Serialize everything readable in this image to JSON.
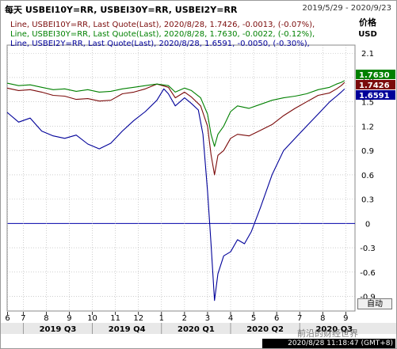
{
  "header": {
    "title": "每天 USBEI10Y=RR, USBEI30Y=RR, USBEI2Y=RR",
    "date_range": "2019/5/29 - 2020/9/23"
  },
  "y_axis_title": "价格",
  "y_axis_unit": "USD",
  "auto_label": "自动",
  "watermark": "前沿的财经世界",
  "timestamp": "2020/8/28 11:18:47 (GMT+8)",
  "colors": {
    "USBEI10Y": "#7b0b0b",
    "USBEI30Y": "#008000",
    "USBEI2Y": "#000099",
    "zero_line": "#0000aa",
    "grid": "#b0b0b0"
  },
  "chart_data": {
    "type": "line",
    "legend": [
      "Line, USBEI10Y=RR, Last Quote(Last), 2020/8/28, 1.7426, -0.0013, (-0.07%),",
      "Line, USBEI30Y=RR, Last Quote(Last), 2020/8/28, 1.7630, -0.0022, (-0.12%),",
      "Line, USBEI2Y=RR, Last Quote(Last), 2020/8/28, 1.6591, -0.0050, (-0.30%),"
    ],
    "ylim": [
      -1.08,
      2.2
    ],
    "y_ticks": [
      2.1,
      1.8,
      1.5,
      1.2,
      0.9,
      0.6,
      0.3,
      0,
      -0.3,
      -0.6,
      -0.9
    ],
    "zero_line": 0,
    "x_month_ticks": [
      {
        "label": "6",
        "t": 0.02
      },
      {
        "label": "7",
        "t": 0.7
      },
      {
        "label": "8",
        "t": 1.7
      },
      {
        "label": "9",
        "t": 2.7
      },
      {
        "label": "10",
        "t": 3.7
      },
      {
        "label": "11",
        "t": 4.7
      },
      {
        "label": "12",
        "t": 5.7
      },
      {
        "label": "1",
        "t": 6.7
      },
      {
        "label": "2",
        "t": 7.7
      },
      {
        "label": "3",
        "t": 8.7
      },
      {
        "label": "4",
        "t": 9.7
      },
      {
        "label": "5",
        "t": 10.7
      },
      {
        "label": "6",
        "t": 11.7
      },
      {
        "label": "7",
        "t": 12.7
      },
      {
        "label": "8",
        "t": 13.7
      },
      {
        "label": "9",
        "t": 14.7
      }
    ],
    "x_quarters": [
      {
        "label": "2019 Q3",
        "t": 2.2
      },
      {
        "label": "2019 Q4",
        "t": 5.2
      },
      {
        "label": "2020 Q1",
        "t": 8.2
      },
      {
        "label": "2020 Q2",
        "t": 11.2
      },
      {
        "label": "2020 Q3",
        "t": 14.2
      }
    ],
    "last_values": [
      {
        "name": "USBEI30Y",
        "value": 1.763
      },
      {
        "name": "USBEI10Y",
        "value": 1.7426
      },
      {
        "name": "USBEI2Y",
        "value": 1.6591
      }
    ],
    "series": [
      {
        "name": "USBEI10Y",
        "points": [
          [
            0,
            1.67
          ],
          [
            0.5,
            1.64
          ],
          [
            1,
            1.65
          ],
          [
            1.5,
            1.62
          ],
          [
            2,
            1.58
          ],
          [
            2.5,
            1.57
          ],
          [
            3,
            1.53
          ],
          [
            3.5,
            1.54
          ],
          [
            4,
            1.51
          ],
          [
            4.5,
            1.52
          ],
          [
            5,
            1.6
          ],
          [
            5.5,
            1.62
          ],
          [
            6,
            1.66
          ],
          [
            6.5,
            1.72
          ],
          [
            7,
            1.68
          ],
          [
            7.3,
            1.55
          ],
          [
            7.7,
            1.62
          ],
          [
            8,
            1.56
          ],
          [
            8.4,
            1.45
          ],
          [
            8.7,
            1.2
          ],
          [
            8.85,
            0.85
          ],
          [
            9.0,
            0.6
          ],
          [
            9.15,
            0.84
          ],
          [
            9.4,
            0.9
          ],
          [
            9.7,
            1.05
          ],
          [
            10,
            1.1
          ],
          [
            10.5,
            1.08
          ],
          [
            11,
            1.15
          ],
          [
            11.5,
            1.22
          ],
          [
            12,
            1.33
          ],
          [
            12.5,
            1.42
          ],
          [
            13,
            1.5
          ],
          [
            13.5,
            1.58
          ],
          [
            14,
            1.61
          ],
          [
            14.3,
            1.66
          ],
          [
            14.5,
            1.7
          ],
          [
            14.65,
            1.74
          ]
        ]
      },
      {
        "name": "USBEI30Y",
        "points": [
          [
            0,
            1.73
          ],
          [
            0.5,
            1.7
          ],
          [
            1,
            1.71
          ],
          [
            1.5,
            1.68
          ],
          [
            2,
            1.65
          ],
          [
            2.5,
            1.66
          ],
          [
            3,
            1.63
          ],
          [
            3.5,
            1.65
          ],
          [
            4,
            1.62
          ],
          [
            4.5,
            1.63
          ],
          [
            5,
            1.66
          ],
          [
            5.5,
            1.68
          ],
          [
            6,
            1.7
          ],
          [
            6.5,
            1.72
          ],
          [
            7,
            1.7
          ],
          [
            7.3,
            1.62
          ],
          [
            7.7,
            1.67
          ],
          [
            8,
            1.64
          ],
          [
            8.4,
            1.55
          ],
          [
            8.7,
            1.35
          ],
          [
            8.85,
            1.1
          ],
          [
            9.0,
            0.95
          ],
          [
            9.15,
            1.1
          ],
          [
            9.4,
            1.2
          ],
          [
            9.7,
            1.38
          ],
          [
            10,
            1.45
          ],
          [
            10.5,
            1.42
          ],
          [
            11,
            1.47
          ],
          [
            11.5,
            1.52
          ],
          [
            12,
            1.55
          ],
          [
            12.5,
            1.57
          ],
          [
            13,
            1.6
          ],
          [
            13.5,
            1.65
          ],
          [
            14,
            1.68
          ],
          [
            14.3,
            1.72
          ],
          [
            14.5,
            1.74
          ],
          [
            14.65,
            1.763
          ]
        ]
      },
      {
        "name": "USBEI2Y",
        "points": [
          [
            0,
            1.37
          ],
          [
            0.5,
            1.25
          ],
          [
            1,
            1.3
          ],
          [
            1.5,
            1.14
          ],
          [
            2,
            1.08
          ],
          [
            2.5,
            1.05
          ],
          [
            3,
            1.09
          ],
          [
            3.5,
            0.98
          ],
          [
            4,
            0.92
          ],
          [
            4.5,
            0.99
          ],
          [
            5,
            1.14
          ],
          [
            5.5,
            1.27
          ],
          [
            6,
            1.38
          ],
          [
            6.5,
            1.52
          ],
          [
            6.8,
            1.66
          ],
          [
            7,
            1.6
          ],
          [
            7.3,
            1.45
          ],
          [
            7.7,
            1.55
          ],
          [
            8,
            1.48
          ],
          [
            8.3,
            1.4
          ],
          [
            8.5,
            1.1
          ],
          [
            8.7,
            0.4
          ],
          [
            8.85,
            -0.25
          ],
          [
            9.0,
            -0.95
          ],
          [
            9.15,
            -0.62
          ],
          [
            9.4,
            -0.4
          ],
          [
            9.7,
            -0.35
          ],
          [
            10,
            -0.2
          ],
          [
            10.3,
            -0.25
          ],
          [
            10.6,
            -0.1
          ],
          [
            11,
            0.2
          ],
          [
            11.5,
            0.6
          ],
          [
            12,
            0.9
          ],
          [
            12.5,
            1.05
          ],
          [
            13,
            1.2
          ],
          [
            13.5,
            1.35
          ],
          [
            14,
            1.5
          ],
          [
            14.3,
            1.57
          ],
          [
            14.5,
            1.62
          ],
          [
            14.65,
            1.659
          ]
        ]
      }
    ]
  }
}
